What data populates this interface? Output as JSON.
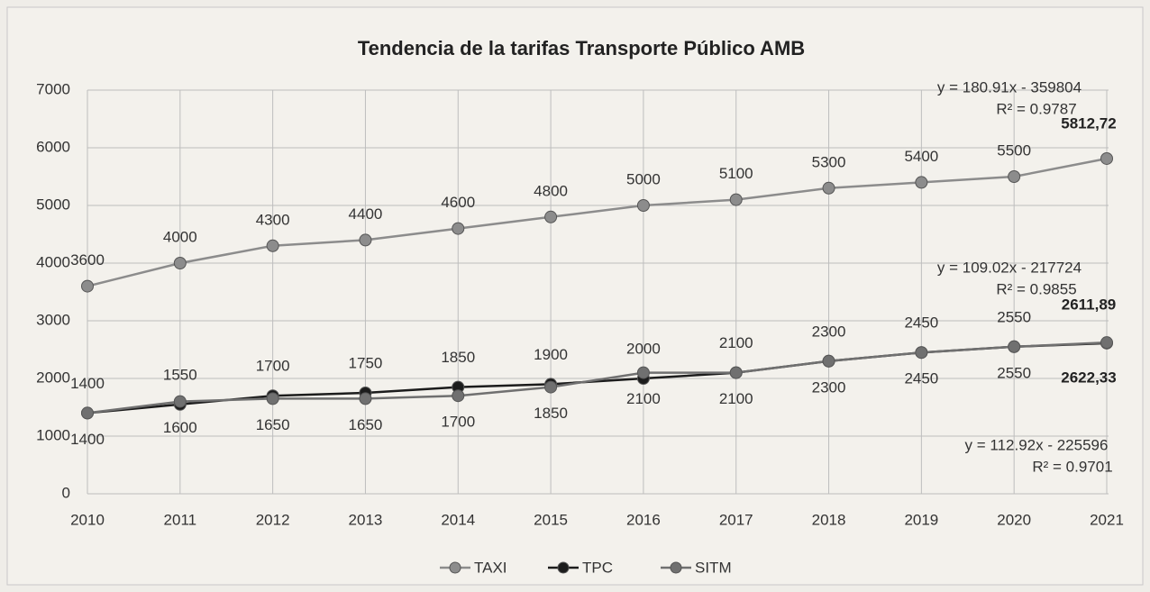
{
  "chart_data": {
    "type": "line",
    "title": "Tendencia de la tarifas Transporte Público AMB",
    "categories": [
      "2010",
      "2011",
      "2012",
      "2013",
      "2014",
      "2015",
      "2016",
      "2017",
      "2018",
      "2019",
      "2020",
      "2021"
    ],
    "ylim": [
      0,
      7000
    ],
    "yticks": [
      0,
      1000,
      2000,
      3000,
      4000,
      5000,
      6000,
      7000
    ],
    "grid": true,
    "legend": "bottom",
    "series": [
      {
        "name": "TAXI",
        "color": "#8c8c8c",
        "values": [
          3600,
          4000,
          4300,
          4400,
          4600,
          4800,
          5000,
          5100,
          5300,
          5400,
          5500,
          5812.72
        ],
        "value_labels": [
          "3600",
          "4000",
          "4300",
          "4400",
          "4600",
          "4800",
          "5000",
          "5100",
          "5300",
          "5400",
          "5500",
          "5812,72"
        ]
      },
      {
        "name": "TPC",
        "color": "#1c1c1c",
        "values": [
          1400,
          1550,
          1700,
          1750,
          1850,
          1900,
          2000,
          2100,
          2300,
          2450,
          2550,
          2611.89
        ],
        "value_labels": [
          "1400",
          "1550",
          "1700",
          "1750",
          "1850",
          "1900",
          "2000",
          "2100",
          "2300",
          "2450",
          "2550",
          "2611,89"
        ]
      },
      {
        "name": "SITM",
        "color": "#707070",
        "values": [
          1400,
          1600,
          1650,
          1650,
          1700,
          1850,
          2100,
          2100,
          2300,
          2450,
          2550,
          2622.33
        ],
        "value_labels": [
          "1400",
          "1600",
          "1650",
          "1650",
          "1700",
          "1850",
          "2100",
          "2100",
          "2300",
          "2450",
          "2550",
          "2622,33"
        ]
      }
    ],
    "annotations": [
      "y = 180.91x - 359804",
      "R² = 0.9787",
      "y = 109.02x - 217724",
      "R² = 0.9855",
      "y = 112.92x - 225596",
      "R² = 0.9701"
    ]
  }
}
